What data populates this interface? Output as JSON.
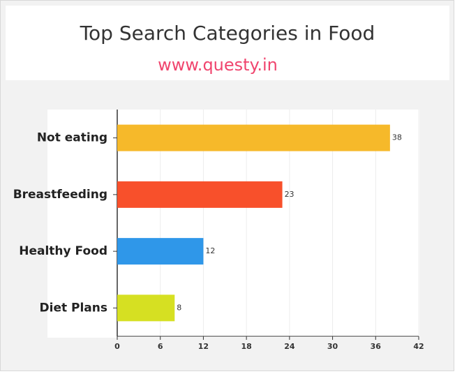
{
  "chart_data": {
    "type": "bar",
    "orientation": "horizontal",
    "title": "Top Search Categories in Food",
    "subtitle": "www.questy.in",
    "categories": [
      "Not eating",
      "Breastfeeding",
      "Healthy Food",
      "Diet Plans"
    ],
    "values": [
      38,
      23,
      12,
      8
    ],
    "colors": [
      "#f6b92a",
      "#f8502b",
      "#2f97e9",
      "#d6e022"
    ],
    "xlim": [
      0,
      42
    ],
    "xticks": [
      0,
      6,
      12,
      18,
      24,
      30,
      36,
      42
    ],
    "grid": true
  }
}
